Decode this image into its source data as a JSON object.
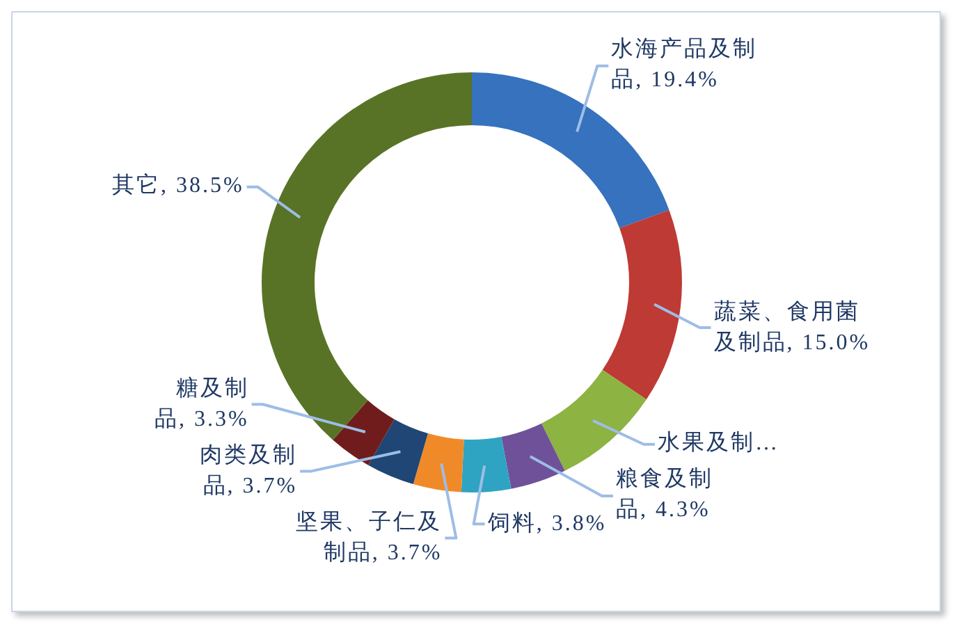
{
  "chart_data": {
    "type": "donut",
    "categories": [
      "水海产品及制品",
      "蔬菜、食用菌及制品",
      "水果及制…",
      "粮食及制品",
      "饲料",
      "坚果、子仁及制品",
      "肉类及制品",
      "糖及制品",
      "其它"
    ],
    "values": [
      19.4,
      15.0,
      8.3,
      4.3,
      3.8,
      3.7,
      3.7,
      3.3,
      38.5
    ],
    "colors": [
      "#3672bd",
      "#be3a35",
      "#8db342",
      "#6f519a",
      "#2ea4c2",
      "#f08a29",
      "#1f4674",
      "#711c1c",
      "#587326"
    ],
    "value_labels": [
      "19.4%",
      "15.0%",
      null,
      "4.3%",
      "3.8%",
      "3.7%",
      "3.7%",
      "3.3%",
      "38.5%"
    ]
  }
}
